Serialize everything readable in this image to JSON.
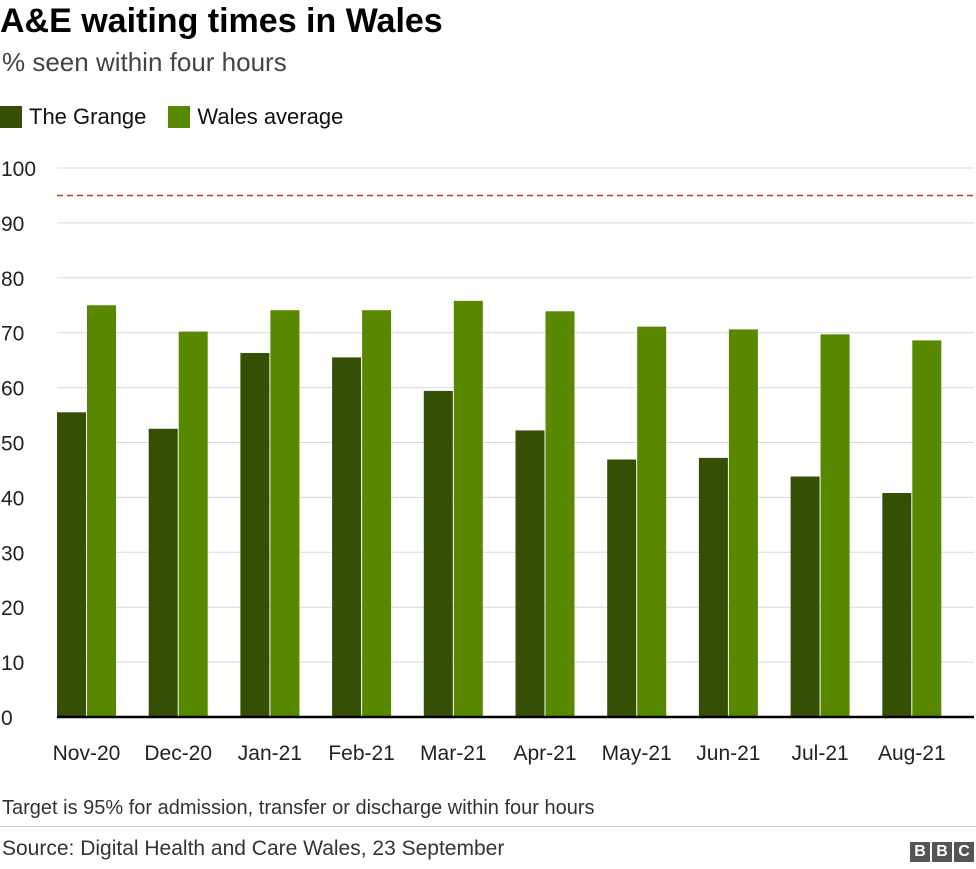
{
  "header": {
    "title": "A&E waiting times in Wales",
    "subtitle": "% seen within four hours"
  },
  "legend": [
    {
      "label": "The Grange",
      "color": "#354f04"
    },
    {
      "label": "Wales average",
      "color": "#588700"
    }
  ],
  "footer": {
    "note": "Target is 95% for admission, transfer or discharge within four hours",
    "source": "Source: Digital Health and Care Wales, 23 September",
    "logo_letters": [
      "B",
      "B",
      "C"
    ]
  },
  "colors": {
    "grange": "#354f04",
    "wales": "#588700",
    "target_line": "#d93025",
    "grid": "#d9d9d9",
    "axis": "#000000"
  },
  "chart_data": {
    "type": "bar",
    "categories": [
      "Nov-20",
      "Dec-20",
      "Jan-21",
      "Feb-21",
      "Mar-21",
      "Apr-21",
      "May-21",
      "Jun-21",
      "Jul-21",
      "Aug-21"
    ],
    "series": [
      {
        "name": "The Grange",
        "values": [
          55.5,
          52.5,
          66.3,
          65.5,
          59.4,
          52.2,
          46.9,
          47.2,
          43.8,
          40.8
        ]
      },
      {
        "name": "Wales average",
        "values": [
          75.0,
          70.2,
          74.1,
          74.1,
          75.8,
          73.9,
          71.1,
          70.6,
          69.7,
          68.6
        ]
      }
    ],
    "target": 95,
    "ylim": [
      0,
      100
    ],
    "yticks": [
      0,
      10,
      20,
      30,
      40,
      50,
      60,
      70,
      80,
      90,
      100
    ],
    "grid": true,
    "legend_position": "top-left"
  }
}
